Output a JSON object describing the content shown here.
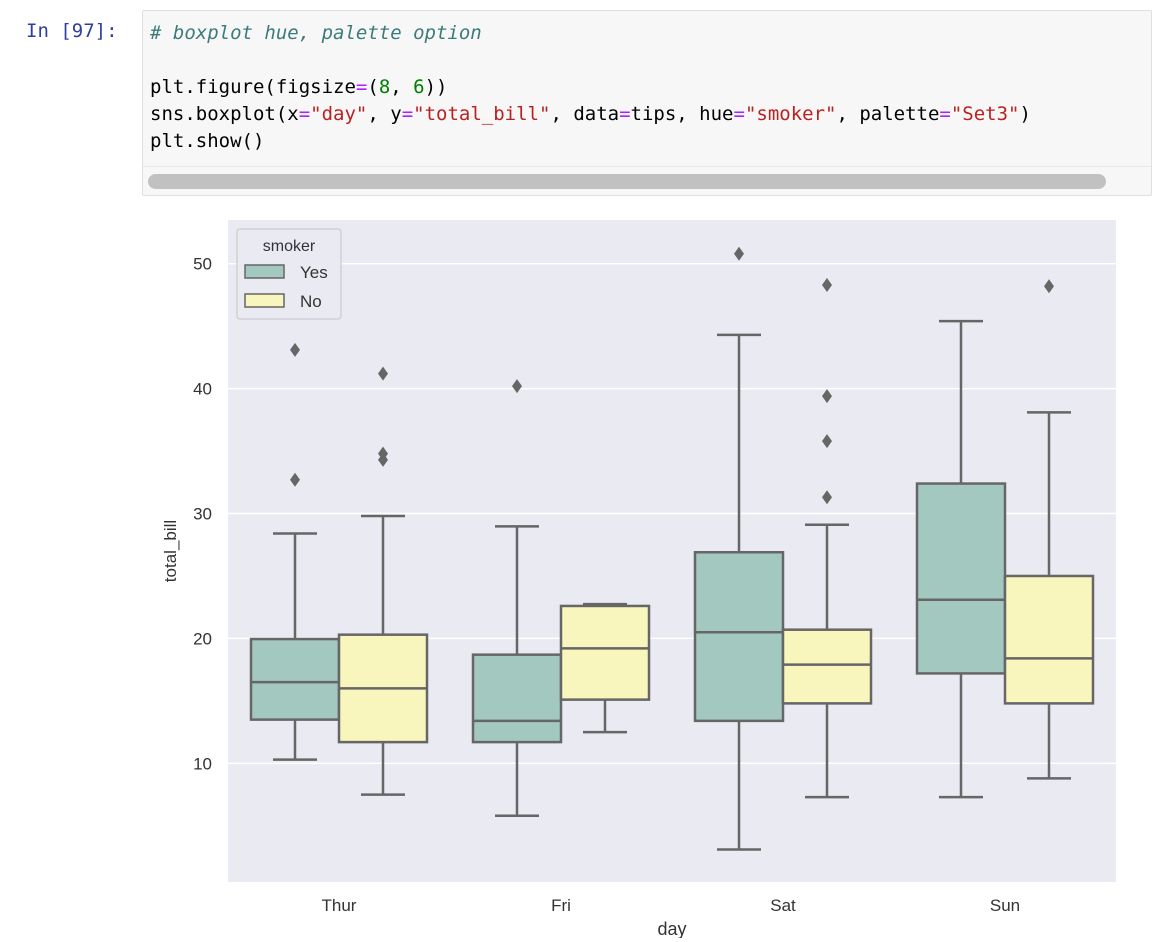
{
  "cell": {
    "prompt": "In [97]:",
    "code_lines": [
      {
        "tokens": [
          {
            "t": "# boxplot hue, palette option",
            "c": "cm"
          }
        ]
      },
      {
        "tokens": []
      },
      {
        "tokens": [
          {
            "t": "plt.figure(figsize"
          },
          {
            "t": "=",
            "c": "op"
          },
          {
            "t": "("
          },
          {
            "t": "8",
            "c": "nu"
          },
          {
            "t": ", "
          },
          {
            "t": "6",
            "c": "nu"
          },
          {
            "t": "))"
          }
        ]
      },
      {
        "tokens": [
          {
            "t": "sns.boxplot(x"
          },
          {
            "t": "=",
            "c": "op"
          },
          {
            "t": "\"day\"",
            "c": "st"
          },
          {
            "t": ", y"
          },
          {
            "t": "=",
            "c": "op"
          },
          {
            "t": "\"total_bill\"",
            "c": "st"
          },
          {
            "t": ", data"
          },
          {
            "t": "=",
            "c": "op"
          },
          {
            "t": "tips, hue"
          },
          {
            "t": "=",
            "c": "op"
          },
          {
            "t": "\"smoker\"",
            "c": "st"
          },
          {
            "t": ", palette"
          },
          {
            "t": "=",
            "c": "op"
          },
          {
            "t": "\"Set3\"",
            "c": "st"
          },
          {
            "t": ")"
          }
        ]
      },
      {
        "tokens": [
          {
            "t": "plt.show()"
          }
        ]
      }
    ]
  },
  "colors": {
    "yes": "#a2c8c0",
    "no": "#f8f5bd",
    "line": "#666666",
    "plot_bg": "#eaeaf2",
    "grid": "#ffffff"
  },
  "chart_data": {
    "type": "box",
    "title": "",
    "xlabel": "day",
    "ylabel": "total_bill",
    "categories": [
      "Thur",
      "Fri",
      "Sat",
      "Sun"
    ],
    "ylim": [
      0.5,
      53.5
    ],
    "yticks": [
      10,
      20,
      30,
      40,
      50
    ],
    "legend": {
      "title": "smoker",
      "entries": [
        "Yes",
        "No"
      ],
      "placement": "top-left"
    },
    "series": [
      {
        "name": "Yes",
        "color_key": "yes",
        "boxes": [
          {
            "whislo": 10.3,
            "q1": 13.5,
            "med": 16.5,
            "q3": 19.95,
            "whishi": 28.4,
            "fliers": [
              32.7,
              43.1
            ]
          },
          {
            "whislo": 5.8,
            "q1": 11.7,
            "med": 13.4,
            "q3": 18.7,
            "whishi": 28.97,
            "fliers": [
              40.2
            ]
          },
          {
            "whislo": 3.1,
            "q1": 13.4,
            "med": 20.5,
            "q3": 26.9,
            "whishi": 44.3,
            "fliers": [
              50.8
            ]
          },
          {
            "whislo": 7.3,
            "q1": 17.2,
            "med": 23.1,
            "q3": 32.4,
            "whishi": 45.4,
            "fliers": []
          }
        ]
      },
      {
        "name": "No",
        "color_key": "no",
        "boxes": [
          {
            "whislo": 7.5,
            "q1": 11.7,
            "med": 16.0,
            "q3": 20.3,
            "whishi": 29.8,
            "fliers": [
              34.3,
              34.8,
              41.2
            ]
          },
          {
            "whislo": 12.5,
            "q1": 15.1,
            "med": 19.2,
            "q3": 22.6,
            "whishi": 22.75,
            "fliers": []
          },
          {
            "whislo": 7.3,
            "q1": 14.8,
            "med": 17.9,
            "q3": 20.7,
            "whishi": 29.1,
            "fliers": [
              31.3,
              35.8,
              39.4,
              48.3
            ]
          },
          {
            "whislo": 8.8,
            "q1": 14.8,
            "med": 18.4,
            "q3": 25.0,
            "whishi": 38.1,
            "fliers": [
              48.2
            ]
          }
        ]
      }
    ]
  }
}
